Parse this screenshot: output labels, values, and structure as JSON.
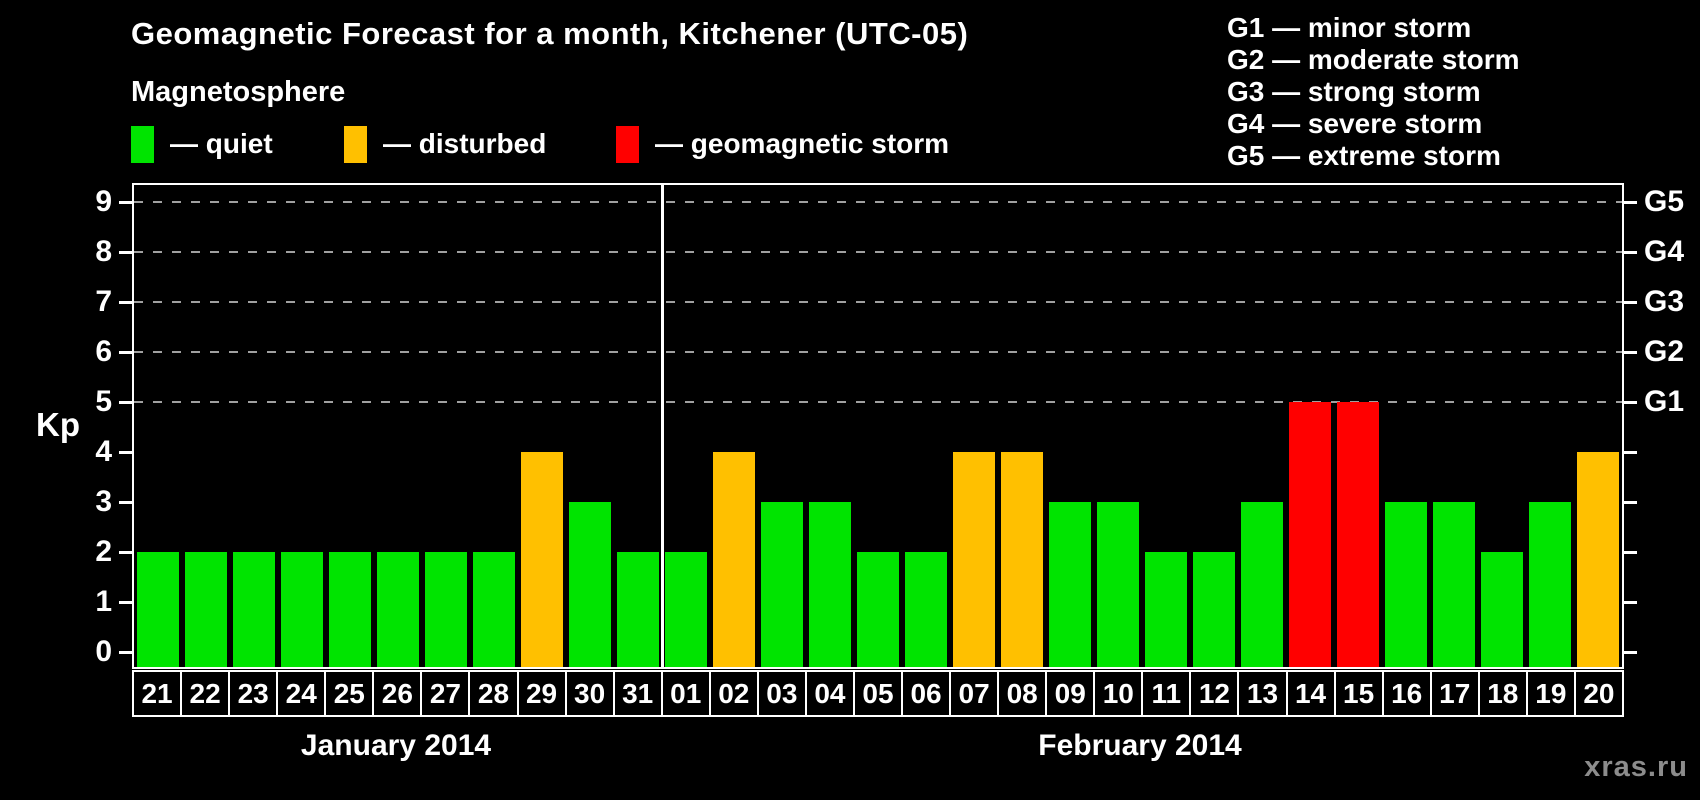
{
  "header": {
    "title": "Geomagnetic Forecast for a month, Kitchener (UTC-05)",
    "subtitle": "Magnetosphere"
  },
  "legend": {
    "items": [
      {
        "status": "quiet",
        "label": "— quiet"
      },
      {
        "status": "disturbed",
        "label": "— disturbed"
      },
      {
        "status": "storm",
        "label": "— geomagnetic storm"
      }
    ]
  },
  "storm_scale": {
    "lines": [
      "G1 — minor storm",
      "G2 — moderate storm",
      "G3 — strong storm",
      "G4 — severe storm",
      "G5 — extreme storm"
    ]
  },
  "axis": {
    "ylabel": "Kp",
    "left_ticks": [
      "0",
      "1",
      "2",
      "3",
      "4",
      "5",
      "6",
      "7",
      "8",
      "9"
    ]
  },
  "watermark": "xras.ru",
  "chart_data": {
    "type": "bar",
    "title": "Geomagnetic Forecast for a month, Kitchener (UTC-05)",
    "subtitle": "Magnetosphere",
    "xlabel": "",
    "ylabel": "Kp",
    "ylim": [
      0,
      9.4
    ],
    "yticks": [
      0,
      1,
      2,
      3,
      4,
      5,
      6,
      7,
      8,
      9
    ],
    "grid": "dashed horizontal lines at Kp 5-9",
    "grid_levels": [
      5,
      6,
      7,
      8,
      9
    ],
    "right_axis": [
      {
        "kp": 5,
        "label": "G1"
      },
      {
        "kp": 6,
        "label": "G2"
      },
      {
        "kp": 7,
        "label": "G3"
      },
      {
        "kp": 8,
        "label": "G4"
      },
      {
        "kp": 9,
        "label": "G5"
      }
    ],
    "status_colors": {
      "quiet": "#00e400",
      "disturbed": "#ffc000",
      "storm": "#ff0000"
    },
    "months": [
      {
        "name": "January 2014",
        "days": [
          {
            "label": "21",
            "kp": 2,
            "status": "quiet"
          },
          {
            "label": "22",
            "kp": 2,
            "status": "quiet"
          },
          {
            "label": "23",
            "kp": 2,
            "status": "quiet"
          },
          {
            "label": "24",
            "kp": 2,
            "status": "quiet"
          },
          {
            "label": "25",
            "kp": 2,
            "status": "quiet"
          },
          {
            "label": "26",
            "kp": 2,
            "status": "quiet"
          },
          {
            "label": "27",
            "kp": 2,
            "status": "quiet"
          },
          {
            "label": "28",
            "kp": 2,
            "status": "quiet"
          },
          {
            "label": "29",
            "kp": 4,
            "status": "disturbed"
          },
          {
            "label": "30",
            "kp": 3,
            "status": "quiet"
          },
          {
            "label": "31",
            "kp": 2,
            "status": "quiet"
          }
        ]
      },
      {
        "name": "February 2014",
        "days": [
          {
            "label": "01",
            "kp": 2,
            "status": "quiet"
          },
          {
            "label": "02",
            "kp": 4,
            "status": "disturbed"
          },
          {
            "label": "03",
            "kp": 3,
            "status": "quiet"
          },
          {
            "label": "04",
            "kp": 3,
            "status": "quiet"
          },
          {
            "label": "05",
            "kp": 2,
            "status": "quiet"
          },
          {
            "label": "06",
            "kp": 2,
            "status": "quiet"
          },
          {
            "label": "07",
            "kp": 4,
            "status": "disturbed"
          },
          {
            "label": "08",
            "kp": 4,
            "status": "disturbed"
          },
          {
            "label": "09",
            "kp": 3,
            "status": "quiet"
          },
          {
            "label": "10",
            "kp": 3,
            "status": "quiet"
          },
          {
            "label": "11",
            "kp": 2,
            "status": "quiet"
          },
          {
            "label": "12",
            "kp": 2,
            "status": "quiet"
          },
          {
            "label": "13",
            "kp": 3,
            "status": "quiet"
          },
          {
            "label": "14",
            "kp": 5,
            "status": "storm"
          },
          {
            "label": "15",
            "kp": 5,
            "status": "storm"
          },
          {
            "label": "16",
            "kp": 3,
            "status": "quiet"
          },
          {
            "label": "17",
            "kp": 3,
            "status": "quiet"
          },
          {
            "label": "18",
            "kp": 2,
            "status": "quiet"
          },
          {
            "label": "19",
            "kp": 3,
            "status": "quiet"
          },
          {
            "label": "20",
            "kp": 4,
            "status": "disturbed"
          }
        ]
      }
    ]
  }
}
